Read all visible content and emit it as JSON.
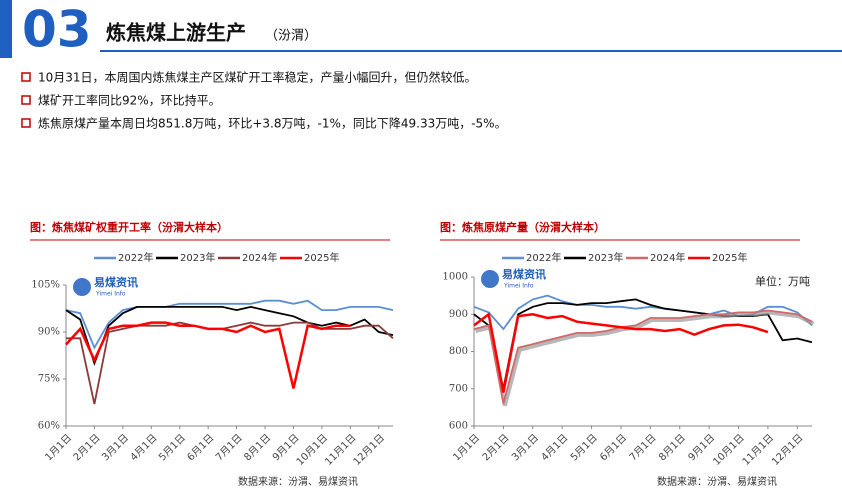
{
  "header": {
    "number": "03",
    "title": "炼焦煤上游生产",
    "subtitle": "（汾渭）"
  },
  "bullets": [
    "10月31日，本周国内炼焦煤主产区煤矿开工率稳定，产量小幅回升，但仍然较低。",
    "煤矿开工率同比92%，环比持平。",
    "炼焦原煤产量本周日均851.8万吨，环比+3.8万吨，-1%，同比下降49.33万吨，-5%。"
  ],
  "watermark": "易煤资讯",
  "watermark_en": "Yimei Info",
  "chart_data": [
    {
      "type": "line",
      "title": "图：炼焦煤矿权重开工率（汾渭大样本）",
      "source": "数据来源：汾渭、易煤资讯",
      "categories": [
        "1月1日",
        null,
        "2月1日",
        null,
        "3月1日",
        null,
        "4月1日",
        null,
        "5月1日",
        null,
        "6月1日",
        null,
        "7月1日",
        null,
        "8月1日",
        null,
        "9月1日",
        null,
        "10月1日",
        null,
        "11月1日",
        null,
        "12月1日",
        null
      ],
      "ylim": [
        60,
        105
      ],
      "yticks": [
        {
          "value": 60,
          "label": "60%"
        },
        {
          "value": 75,
          "label": "75%"
        },
        {
          "value": 90,
          "label": "90%"
        },
        {
          "value": 105,
          "label": "105%"
        }
      ],
      "legend": "top",
      "series": [
        {
          "name": "2022年",
          "color": "#5b8fd1",
          "values": [
            97,
            96,
            85,
            93,
            97,
            98,
            98,
            98,
            99,
            99,
            99,
            99,
            99,
            99,
            100,
            100,
            99,
            100,
            97,
            97,
            98,
            98,
            98,
            97
          ]
        },
        {
          "name": "2023年",
          "color": "#000000",
          "values": [
            97,
            94,
            80,
            92,
            96,
            98,
            98,
            98,
            98,
            98,
            98,
            98,
            97,
            98,
            97,
            96,
            95,
            93,
            92,
            93,
            92,
            94,
            90,
            89
          ]
        },
        {
          "name": "2024年",
          "color": "#8b3a3a",
          "values": [
            88,
            88,
            67,
            90,
            91,
            92,
            92,
            92,
            93,
            92,
            91,
            91,
            92,
            93,
            92,
            92,
            93,
            93,
            91,
            91,
            91,
            92,
            92,
            88
          ]
        },
        {
          "name": "2025年",
          "color": "#ff0000",
          "values": [
            86,
            91,
            81,
            91,
            92,
            92,
            93,
            93,
            92,
            92,
            91,
            91,
            90,
            92,
            90,
            91,
            72,
            92,
            91,
            92,
            92,
            null,
            null,
            null
          ]
        }
      ]
    },
    {
      "type": "line",
      "title": "图：炼焦原煤产量（汾渭大样本）",
      "source": "数据来源：汾渭、易煤资讯",
      "unit": "单位：万吨",
      "categories": [
        "1月1日",
        null,
        "2月1日",
        null,
        "3月1日",
        null,
        "4月1日",
        null,
        "5月1日",
        null,
        "6月1日",
        null,
        "7月1日",
        null,
        "8月1日",
        null,
        "9月1日",
        null,
        "10月1日",
        null,
        "11月1日",
        null,
        "12月1日",
        null
      ],
      "ylim": [
        600,
        1000
      ],
      "yticks": [
        600,
        700,
        800,
        900,
        1000
      ],
      "legend": "top",
      "series": [
        {
          "name": "2022年",
          "color": "#5b8fd1",
          "values": [
            920,
            905,
            860,
            915,
            940,
            950,
            935,
            925,
            925,
            920,
            920,
            915,
            920,
            915,
            910,
            905,
            900,
            910,
            895,
            900,
            920,
            920,
            905,
            870
          ]
        },
        {
          "name": "2023年",
          "color": "#000000",
          "values": [
            900,
            870,
            700,
            900,
            920,
            930,
            930,
            925,
            930,
            930,
            935,
            940,
            925,
            915,
            910,
            905,
            900,
            895,
            895,
            895,
            900,
            830,
            835,
            825
          ]
        },
        {
          "name": "2024年",
          "color": "#d06a6a",
          "values": [
            860,
            870,
            660,
            810,
            820,
            830,
            840,
            850,
            850,
            855,
            865,
            870,
            890,
            890,
            890,
            895,
            900,
            900,
            905,
            905,
            910,
            905,
            900,
            880
          ]
        },
        {
          "name": "2025年",
          "color": "#ff0000",
          "values": [
            870,
            900,
            690,
            895,
            900,
            890,
            895,
            880,
            875,
            870,
            865,
            860,
            860,
            855,
            860,
            845,
            860,
            870,
            872,
            865,
            852,
            null,
            null,
            null
          ]
        }
      ]
    }
  ]
}
